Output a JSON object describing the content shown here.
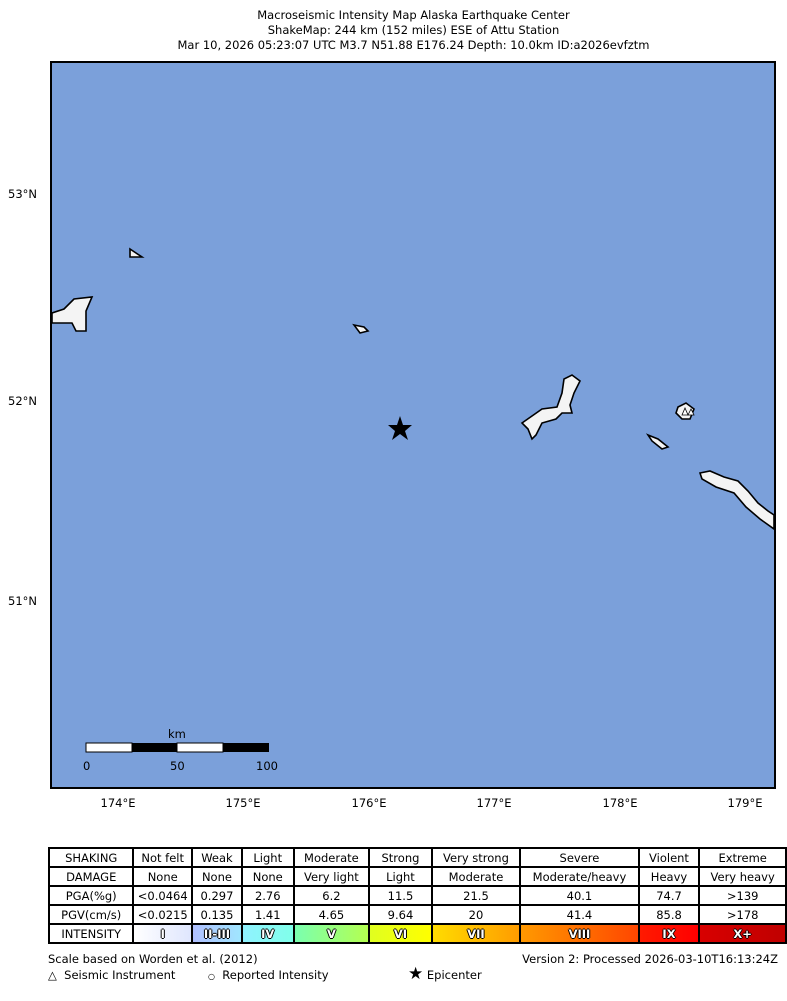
{
  "title": {
    "line1": "Macroseismic Intensity Map Alaska Earthquake Center",
    "line2": "ShakeMap: 244 km (152 miles) ESE of Attu Station",
    "line3": "Mar 10, 2026 05:23:07 UTC M3.7 N51.88 E176.24 Depth: 10.0km ID:a2026evfztm"
  },
  "map": {
    "ocean_color": "#7ba0da",
    "land_color": "#ffffff",
    "lat_labels": [
      "53°N",
      "52°N",
      "51°N"
    ],
    "lon_labels": [
      "174°E",
      "175°E",
      "176°E",
      "177°E",
      "178°E",
      "179°E"
    ],
    "epicenter": {
      "lat": 51.88,
      "lon": 176.24,
      "icon": "star-icon"
    },
    "scale_bar": {
      "unit": "km",
      "ticks": [
        "0",
        "50",
        "100"
      ]
    }
  },
  "legend": {
    "rows": [
      {
        "label": "SHAKING",
        "cells": [
          "Not felt",
          "Weak",
          "Light",
          "Moderate",
          "Strong",
          "Very strong",
          "Severe",
          "Violent",
          "Extreme"
        ]
      },
      {
        "label": "DAMAGE",
        "cells": [
          "None",
          "None",
          "None",
          "Very light",
          "Light",
          "Moderate",
          "Moderate/heavy",
          "Heavy",
          "Very heavy"
        ]
      },
      {
        "label": "PGA(%g)",
        "cells": [
          "<0.0464",
          "0.297",
          "2.76",
          "6.2",
          "11.5",
          "21.5",
          "40.1",
          "74.7",
          ">139"
        ]
      },
      {
        "label": "PGV(cm/s)",
        "cells": [
          "<0.0215",
          "0.135",
          "1.41",
          "4.65",
          "9.64",
          "20",
          "41.4",
          "85.8",
          ">178"
        ]
      }
    ],
    "intensity": {
      "label": "INTENSITY",
      "cells": [
        "I",
        "II-III",
        "IV",
        "V",
        "VI",
        "VII",
        "VIII",
        "IX",
        "X+"
      ],
      "colors": [
        "#ffffff",
        "#bfccff",
        "#80ffff",
        "#7aff93",
        "#ffff00",
        "#ffc800",
        "#ff9100",
        "#ff0000",
        "#c80000"
      ]
    },
    "scale_note": "Scale based on Worden et al. (2012)",
    "version": "Version 2: Processed 2026-03-10T16:13:24Z",
    "symbols": {
      "instrument": "Seismic Instrument",
      "reported": "Reported Intensity",
      "epicenter": "Epicenter"
    }
  }
}
